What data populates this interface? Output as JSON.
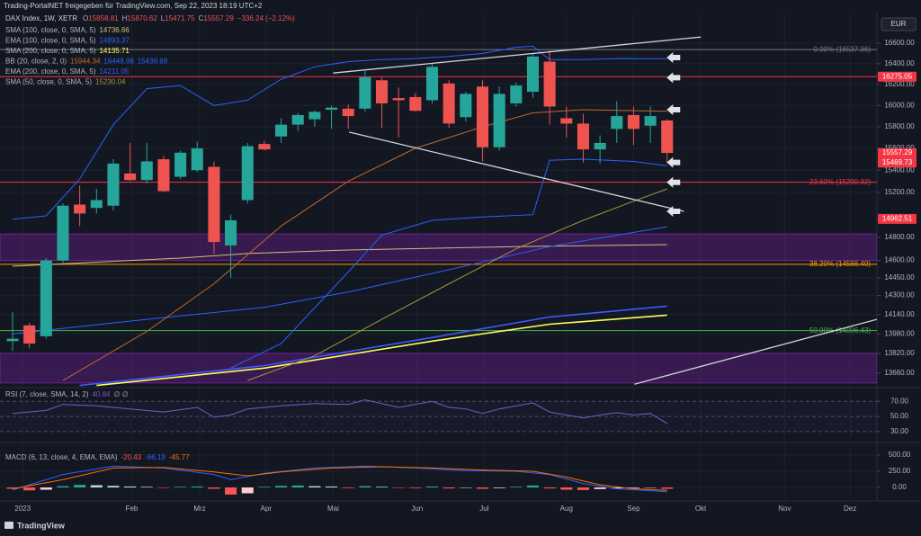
{
  "chart_data": {
    "type": "candlestick",
    "header": "Trading-PortalNET freigegeben für TradingView.com, Sep 22, 2023 18:19 UTC+2",
    "symbol": "DAX Index, 1W, XETR",
    "ohlc_letters": [
      "O",
      "H",
      "L",
      "C"
    ],
    "change": "−336.24 (−2.12%)",
    "currency": "EUR",
    "brand": "TradingView",
    "log": true,
    "grid": true,
    "up_color": "#26a69a",
    "down_color": "#ef5350",
    "xlim": [
      -0.75,
      51.5
    ],
    "xticks": [
      {
        "value": 0.6,
        "label": "2023"
      },
      {
        "value": 7.1,
        "label": "Feb"
      },
      {
        "value": 11.15,
        "label": "Mrz"
      },
      {
        "value": 15.1,
        "label": "Apr"
      },
      {
        "value": 19.1,
        "label": "Mai"
      },
      {
        "value": 24.1,
        "label": "Jun"
      },
      {
        "value": 28.1,
        "label": "Jul"
      },
      {
        "value": 33.0,
        "label": "Aug"
      },
      {
        "value": 37.0,
        "label": "Sep"
      },
      {
        "value": 41.0,
        "label": "Okt"
      },
      {
        "value": 46.0,
        "label": "Nov"
      },
      {
        "value": 49.9,
        "label": "Dez"
      }
    ],
    "ylim": [
      13550,
      16885
    ],
    "yticks": [
      {
        "value": 16600,
        "label": "16600.00"
      },
      {
        "value": 16400,
        "label": "16400.00"
      },
      {
        "value": 16200,
        "label": "16200.00"
      },
      {
        "value": 16000,
        "label": "16000.00"
      },
      {
        "value": 15800,
        "label": "15800.00"
      },
      {
        "value": 15600,
        "label": "15600.00"
      },
      {
        "value": 15400,
        "label": "15400.00"
      },
      {
        "value": 15200,
        "label": "15200.00"
      },
      {
        "value": 14800,
        "label": "14800.00"
      },
      {
        "value": 14600,
        "label": "14600.00"
      },
      {
        "value": 14450,
        "label": "14450.00"
      },
      {
        "value": 14300,
        "label": "14300.00"
      },
      {
        "value": 14140,
        "label": "14140.00"
      },
      {
        "value": 13980,
        "label": "13980.00"
      },
      {
        "value": 13820,
        "label": "13820.00"
      },
      {
        "value": 13660,
        "label": "13660.00"
      }
    ],
    "open": [
      13920,
      14050,
      13960,
      14600,
      15090,
      15060,
      15080,
      15370,
      15310,
      15500,
      15340,
      15400,
      15430,
      14730,
      15130,
      15640,
      15710,
      15820,
      15870,
      15960,
      15970,
      15970,
      16240,
      16070,
      16080,
      16050,
      16210,
      15890,
      16180,
      15610,
      16020,
      16130,
      16420,
      15880,
      15830,
      15590,
      15780,
      15910,
      15810,
      15858.81
    ],
    "high": [
      14160,
      14070,
      14620,
      15100,
      15260,
      15230,
      15500,
      15650,
      15650,
      15530,
      15580,
      15660,
      15480,
      15000,
      15650,
      15670,
      15880,
      15930,
      15950,
      16000,
      16010,
      16330,
      16270,
      16170,
      16120,
      16400,
      16240,
      16130,
      16240,
      16180,
      16220,
      16500,
      16530,
      15990,
      15920,
      15720,
      16040,
      15990,
      15990,
      15870.62
    ],
    "low": [
      13840,
      13860,
      13940,
      14580,
      14900,
      15010,
      15040,
      15300,
      15280,
      15200,
      15320,
      15380,
      14660,
      14450,
      15100,
      15580,
      15650,
      15760,
      15800,
      15780,
      15780,
      15940,
      15790,
      15700,
      15940,
      16020,
      15790,
      15850,
      15480,
      15580,
      15990,
      16070,
      15820,
      15700,
      15470,
      15460,
      15650,
      15630,
      15650,
      15471.75
    ],
    "close": [
      13940,
      13900,
      14600,
      15080,
      15010,
      15130,
      15460,
      15310,
      15480,
      15210,
      15560,
      15600,
      14760,
      14950,
      15620,
      15590,
      15820,
      15910,
      15940,
      15980,
      15900,
      16270,
      16020,
      16050,
      15950,
      16370,
      15830,
      16110,
      15610,
      16110,
      16190,
      16470,
      15990,
      15830,
      15590,
      15650,
      15900,
      15780,
      15900,
      15557.29
    ],
    "series": [
      {
        "name": "SMA (100, close, 0, SMA, 5)",
        "color": "#d4c07a",
        "x": [
          0,
          10,
          14,
          20,
          30,
          39
        ],
        "values": [
          14550,
          14620,
          14660,
          14690,
          14720,
          14736.66
        ]
      },
      {
        "name": "EMA (100, close, 0, SMA, 5)",
        "color": "#2962ff",
        "x": [
          0,
          8,
          15,
          20,
          26,
          32,
          39
        ],
        "values": [
          13980,
          14100,
          14200,
          14330,
          14520,
          14720,
          14893.37
        ]
      },
      {
        "name": "SMA (200, close, 0, SMA, 5)",
        "color": "#ffff5c",
        "x": [
          5,
          15,
          25,
          32,
          39
        ],
        "values": [
          13560,
          13700,
          13920,
          14060,
          14135.71
        ]
      },
      {
        "name": "BB (20, close, 2, 0)",
        "color": "#c0692d",
        "x": [
          3,
          8,
          12,
          16,
          20,
          24,
          28,
          31,
          34,
          39
        ],
        "values": [
          13600,
          14000,
          14400,
          14900,
          15300,
          15600,
          15800,
          15930,
          15960,
          15944.34
        ],
        "upper": {
          "color": "#2962ff",
          "x": [
            0,
            2,
            4,
            6,
            8,
            10,
            12,
            14,
            16,
            18,
            20,
            22,
            24,
            26,
            28,
            30,
            31,
            32,
            34,
            36,
            39
          ],
          "values": [
            14960,
            14990,
            15320,
            15820,
            16160,
            16190,
            16000,
            16050,
            16250,
            16370,
            16420,
            16440,
            16450,
            16470,
            16500,
            16560,
            16570,
            16440,
            16440,
            16450,
            16448.98
          ]
        },
        "lower": {
          "color": "#2962ff",
          "x": [
            13,
            16,
            20,
            22,
            25,
            28,
            31,
            32,
            34,
            37,
            39
          ],
          "values": [
            13700,
            13900,
            14500,
            14820,
            14950,
            14980,
            15000,
            15490,
            15500,
            15480,
            15439.69
          ]
        }
      },
      {
        "name": "EMA (200, close, 0, SMA, 5)",
        "color": "#3d5afe",
        "x": [
          4,
          15,
          25,
          32,
          39
        ],
        "values": [
          13560,
          13720,
          13950,
          14120,
          14211.05
        ]
      },
      {
        "name": "SMA (50, close, 0, SMA, 5)",
        "color": "#9e9a3b",
        "x": [
          14,
          18,
          22,
          26,
          30,
          34,
          37,
          39
        ],
        "values": [
          13600,
          13800,
          14100,
          14400,
          14700,
          14950,
          15120,
          15230.04
        ]
      }
    ],
    "fib_levels": [
      {
        "value": 16537.36,
        "label": "0.00% (16537.36)",
        "color": "#787b86"
      },
      {
        "value": 15290.32,
        "label": "23.60% (15290.32)",
        "color": "#f23645"
      },
      {
        "value": 14566.4,
        "label": "38.20% (14566.40)",
        "color": "#ff9800"
      },
      {
        "value": 14006.43,
        "label": "50.00% (14006.43)",
        "color": "#4caf50"
      }
    ],
    "level_line": {
      "value": 16275.05,
      "color": "#f23645"
    },
    "price_tags": [
      16275.05,
      15557.29,
      15469.73,
      14962.51
    ],
    "tag_color": "#f23645",
    "zones": [
      {
        "from": 14600,
        "to": 14830
      },
      {
        "from": 13580,
        "to": 13820
      }
    ],
    "zone_color": "#7b1fa2",
    "trend_lines": [
      {
        "x": [
          19.1,
          41.0
        ],
        "values": [
          16310,
          16660
        ]
      },
      {
        "x": [
          20.05,
          40.0
        ],
        "values": [
          15750,
          15030
        ]
      },
      {
        "x": [
          37.05,
          51.5
        ],
        "values": [
          13570,
          14100
        ]
      }
    ],
    "arrows": {
      "x": 39.35,
      "values": [
        16460,
        16265,
        15960,
        15470,
        15290,
        15030
      ]
    },
    "rsi": {
      "label": "RSI (7, close, SMA, 14, 2)",
      "extra": "∅ ∅",
      "color": "#7e57c2",
      "ylim": [
        18,
        87
      ],
      "yticks": [
        {
          "value": 70,
          "label": "70.00"
        },
        {
          "value": 50,
          "label": "50.00"
        },
        {
          "value": 30,
          "label": "30.00"
        }
      ],
      "x": [
        0,
        2,
        3,
        5,
        7,
        9,
        11,
        12,
        13,
        14,
        16,
        18,
        20,
        21,
        23,
        25,
        26,
        27,
        28,
        29,
        31,
        32,
        34,
        35,
        36,
        37,
        38,
        39
      ],
      "values": [
        54,
        58,
        66,
        64,
        60,
        56,
        62,
        49,
        52,
        60,
        64,
        67,
        66,
        72,
        62,
        70,
        62,
        60,
        54,
        60,
        68,
        56,
        48,
        52,
        55,
        52,
        54,
        40.84
      ]
    },
    "macd": {
      "label": "MACD (6, 13, close, 4, EMA, EMA)",
      "ylim": [
        -194,
        667
      ],
      "yticks": [
        {
          "value": 500,
          "label": "500.00"
        },
        {
          "value": 250,
          "label": "250.00"
        },
        {
          "value": 0,
          "label": "0.00"
        }
      ],
      "histogram": [
        -20,
        -45,
        -35,
        20,
        40,
        35,
        25,
        15,
        10,
        -5,
        10,
        15,
        -20,
        -110,
        -90,
        10,
        25,
        30,
        20,
        15,
        -10,
        20,
        10,
        -5,
        -10,
        15,
        -15,
        -5,
        -20,
        -10,
        10,
        30,
        -15,
        -35,
        -40,
        -25,
        -15,
        -10,
        -5,
        -20.43
      ],
      "hist_colors": [
        "#26a69a",
        "#b2dfdb",
        "#ff5252",
        "#ffcdd2"
      ],
      "macd_line": {
        "color": "#2962ff",
        "x": [
          0,
          3,
          6,
          9,
          12,
          13,
          15,
          18,
          21,
          24,
          27,
          30,
          32,
          34,
          36,
          39
        ],
        "values": [
          -40,
          200,
          330,
          300,
          200,
          120,
          220,
          300,
          330,
          300,
          260,
          250,
          200,
          60,
          -20,
          -66.19
        ]
      },
      "signal": {
        "color": "#ff6d00",
        "x": [
          0,
          3,
          6,
          9,
          12,
          14,
          16,
          19,
          22,
          25,
          28,
          31,
          33,
          35,
          37,
          39
        ],
        "values": [
          -20,
          120,
          300,
          310,
          240,
          180,
          240,
          300,
          320,
          300,
          270,
          250,
          160,
          40,
          -20,
          -45.77
        ]
      }
    }
  }
}
